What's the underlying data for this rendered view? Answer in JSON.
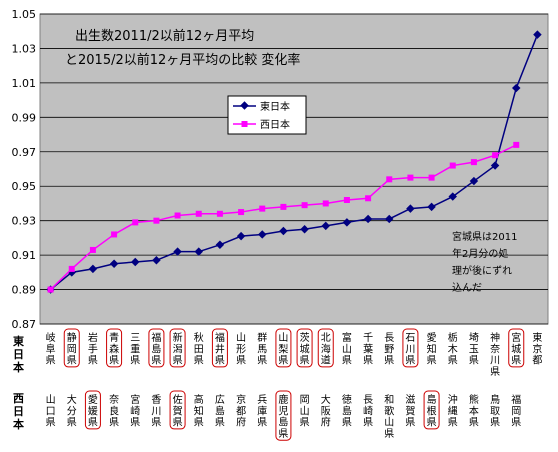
{
  "chart_data": {
    "type": "line",
    "title_lines": [
      "出生数2011/2以前12ヶ月平均",
      "と2015/2以前12ヶ月平均の比較 変化率"
    ],
    "ylim": [
      0.87,
      1.05
    ],
    "yticks": [
      "1.05",
      "1.03",
      "1.01",
      "0.99",
      "0.97",
      "0.95",
      "0.93",
      "0.91",
      "0.89",
      "0.87"
    ],
    "grid": true,
    "legend_position": "upper-middle",
    "row_labels": [
      "東日本",
      "西日本"
    ],
    "categories_east": [
      "岐阜県",
      "静岡県",
      "岩手県",
      "青森県",
      "三重県",
      "福島県",
      "新潟県",
      "秋田県",
      "福井県",
      "山形県",
      "群馬県",
      "山梨県",
      "茨城県",
      "北海道",
      "富山県",
      "千葉県",
      "長野県",
      "石川県",
      "愛知県",
      "栃木県",
      "埼玉県",
      "神奈川県",
      "宮城県",
      "東京都"
    ],
    "categories_west": [
      "山口県",
      "大分県",
      "愛媛県",
      "奈良県",
      "宮崎県",
      "香川県",
      "佐賀県",
      "高知県",
      "広島県",
      "京都府",
      "兵庫県",
      "鹿児島県",
      "岡山県",
      "大阪府",
      "徳島県",
      "長崎県",
      "和歌山県",
      "滋賀県",
      "島根県",
      "沖縄県",
      "熊本県",
      "鳥取県",
      "福岡県"
    ],
    "boxed_east": [
      "静岡県",
      "青森県",
      "福島県",
      "新潟県",
      "福井県",
      "山梨県",
      "茨城県",
      "北海道",
      "石川県",
      "宮城県"
    ],
    "boxed_west": [
      "愛媛県",
      "佐賀県",
      "鹿児島県",
      "島根県"
    ],
    "series": [
      {
        "name": "東日本",
        "color": "#000080",
        "marker": "diamond",
        "values": [
          0.89,
          0.9,
          0.902,
          0.905,
          0.906,
          0.907,
          0.912,
          0.912,
          0.916,
          0.921,
          0.922,
          0.924,
          0.925,
          0.927,
          0.929,
          0.931,
          0.931,
          0.937,
          0.938,
          0.944,
          0.953,
          0.962,
          1.007,
          1.038
        ]
      },
      {
        "name": "西日本",
        "color": "#FF00FF",
        "marker": "square",
        "values": [
          0.89,
          0.902,
          0.913,
          0.922,
          0.929,
          0.93,
          0.933,
          0.934,
          0.934,
          0.935,
          0.937,
          0.938,
          0.939,
          0.94,
          0.942,
          0.943,
          0.954,
          0.955,
          0.955,
          0.962,
          0.964,
          0.968,
          0.974
        ]
      }
    ],
    "annotation_lines": [
      "宮城県は2011",
      "年2月分の処",
      "理が後にずれ",
      "込んだ"
    ]
  }
}
